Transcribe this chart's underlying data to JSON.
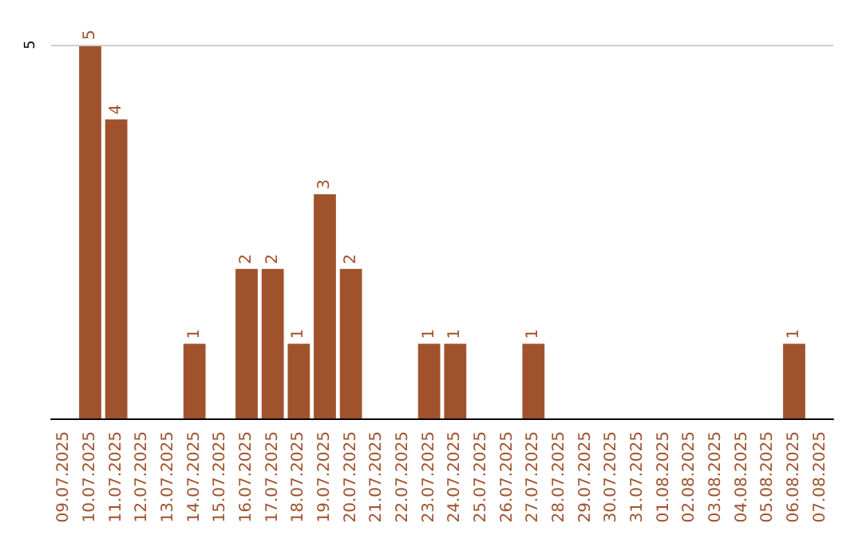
{
  "chart_data": {
    "type": "bar",
    "categories": [
      "09.07.2025",
      "10.07.2025",
      "11.07.2025",
      "12.07.2025",
      "13.07.2025",
      "14.07.2025",
      "15.07.2025",
      "16.07.2025",
      "17.07.2025",
      "18.07.2025",
      "19.07.2025",
      "20.07.2025",
      "21.07.2025",
      "22.07.2025",
      "23.07.2025",
      "24.07.2025",
      "25.07.2025",
      "26.07.2025",
      "27.07.2025",
      "28.07.2025",
      "29.07.2025",
      "30.07.2025",
      "31.07.2025",
      "01.08.2025",
      "02.08.2025",
      "03.08.2025",
      "04.08.2025",
      "05.08.2025",
      "06.08.2025",
      "07.08.2025"
    ],
    "values": [
      0,
      5,
      4,
      0,
      0,
      1,
      0,
      2,
      2,
      1,
      3,
      2,
      0,
      0,
      1,
      1,
      0,
      0,
      1,
      0,
      0,
      0,
      0,
      0,
      0,
      0,
      0,
      0,
      1,
      0
    ],
    "value_labels": [
      null,
      "5",
      "4",
      null,
      null,
      "1",
      null,
      "2",
      "2",
      "1",
      "3",
      "2",
      null,
      null,
      "1",
      "1",
      null,
      null,
      "1",
      null,
      null,
      null,
      null,
      null,
      null,
      null,
      null,
      null,
      "1",
      null
    ],
    "color": "#a0522d",
    "ylim": [
      0,
      5
    ],
    "yticks": [
      5
    ],
    "ref_lines": [
      {
        "axis": "y",
        "value": 5,
        "color": "#cccccc"
      }
    ]
  }
}
